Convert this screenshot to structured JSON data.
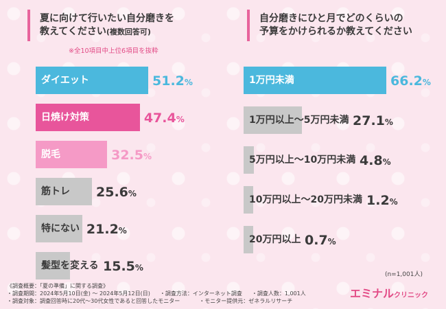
{
  "left": {
    "title_line1": "夏に向けて行いたい自分磨きを",
    "title_line2": "教えてください",
    "title_suffix": "(複数回答可)",
    "note": "※全10項目中上位6項目を抜粋"
  },
  "right": {
    "title_line1": "自分磨きにひと月でどのくらいの",
    "title_line2": "予算をかけられるか教えてください"
  },
  "chart_data": [
    {
      "type": "bar",
      "orientation": "horizontal",
      "title": "夏に向けて行いたい自分磨きを教えてください(複数回答可)",
      "unit": "%",
      "categories": [
        "ダイエット",
        "日焼け対策",
        "脱毛",
        "筋トレ",
        "特にない",
        "髪型を変える"
      ],
      "values": [
        51.2,
        47.4,
        32.5,
        25.6,
        21.2,
        15.5
      ],
      "value_labels": [
        "51.2",
        "47.4",
        "32.5",
        "25.6",
        "21.2",
        "15.5"
      ],
      "colors": [
        "#4bb8dd",
        "#e8559b",
        "#f59ac6",
        "#c8c8c8",
        "#c8c8c8",
        "#c8c8c8"
      ],
      "text_colors": [
        "#ffffff",
        "#ffffff",
        "#ffffff",
        "#3a3a3a",
        "#3a3a3a",
        "#3a3a3a"
      ],
      "value_colors": [
        "#4bb8dd",
        "#e8559b",
        "#f59ac6",
        "#3a3a3a",
        "#3a3a3a",
        "#3a3a3a"
      ],
      "xlim": [
        0,
        51.2
      ]
    },
    {
      "type": "bar",
      "orientation": "horizontal",
      "title": "自分磨きにひと月でどのくらいの予算をかけられるか教えてください",
      "unit": "%",
      "categories": [
        "1万円未満",
        "1万円以上〜5万円未満",
        "5万円以上〜10万円未満",
        "10万円以上〜20万円未満",
        "20万円以上"
      ],
      "values": [
        66.2,
        27.1,
        4.8,
        1.2,
        0.7
      ],
      "value_labels": [
        "66.2",
        "27.1",
        "4.8",
        "1.2",
        "0.7"
      ],
      "colors": [
        "#4bb8dd",
        "#c8c8c8",
        "#c8c8c8",
        "#c8c8c8",
        "#c8c8c8"
      ],
      "text_colors": [
        "#ffffff",
        "#3a3a3a",
        "#3a3a3a",
        "#3a3a3a",
        "#3a3a3a"
      ],
      "value_colors": [
        "#4bb8dd",
        "#3a3a3a",
        "#3a3a3a",
        "#3a3a3a",
        "#3a3a3a"
      ],
      "xlim": [
        0,
        66.2
      ],
      "sample_size": "(n=1,001人)"
    }
  ],
  "footer": {
    "overview": "《調査概要：「夏の準備」に関する調査》",
    "period": "・調査期間：2024年5月10日(金) 〜 2024年5月12日(日)",
    "method": "・調査方法：インターネット調査",
    "people": "・調査人数：1,001人",
    "target": "・調査対象：調査回答時に20代〜30代女性であると回答したモニター",
    "provider": "・モニター提供元：ゼネラルリサーチ"
  },
  "logo": {
    "main": "エミナル",
    "sub": "クリニック"
  },
  "pct_sign": "%"
}
